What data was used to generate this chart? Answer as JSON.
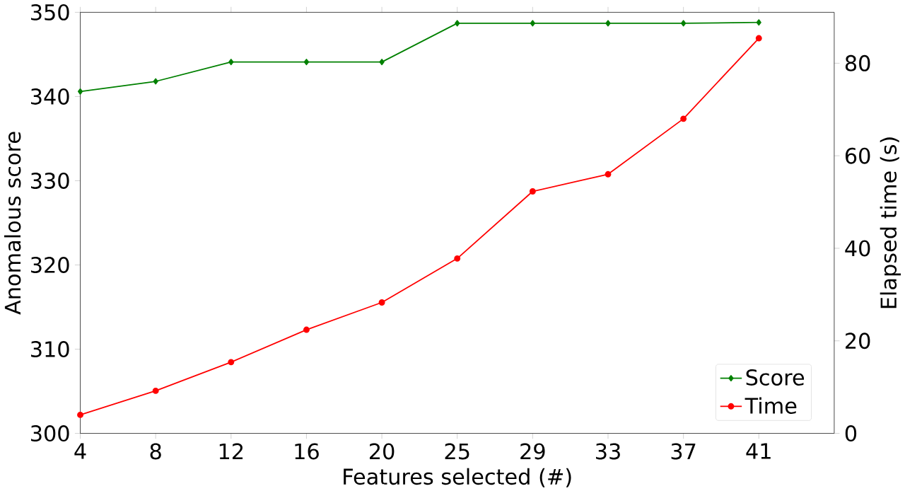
{
  "chart_data": {
    "type": "line",
    "xlabel": "Features selected  (#)",
    "ylabel": "Anomalous score",
    "y2label": "Elapsed time (s)",
    "categories": [
      "4",
      "8",
      "12",
      "16",
      "20",
      "25",
      "29",
      "33",
      "37",
      "41"
    ],
    "series": [
      {
        "name": "Score",
        "color": "#008000",
        "marker": "diamond",
        "values": [
          340.6,
          341.8,
          344.1,
          344.1,
          344.1,
          348.7,
          348.7,
          348.7,
          348.7,
          348.8
        ]
      },
      {
        "name": "Time",
        "color": "#ff0000",
        "marker": "circle",
        "axis": "y2",
        "values": [
          4.0,
          9.2,
          15.4,
          22.4,
          28.3,
          37.8,
          52.3,
          56.0,
          68.0,
          85.4
        ]
      }
    ],
    "ylim": [
      300,
      350
    ],
    "yticks": [
      300,
      310,
      320,
      330,
      340,
      350
    ],
    "y2lim": [
      0,
      91
    ],
    "y2ticks": [
      0,
      20,
      40,
      60,
      80
    ],
    "legend": "bottom right",
    "grid": false
  }
}
